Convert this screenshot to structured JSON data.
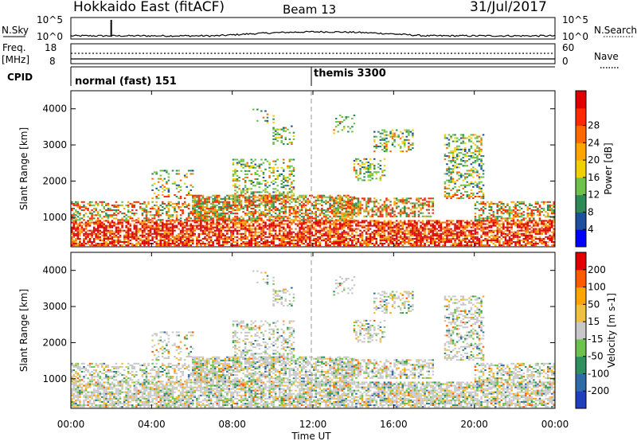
{
  "header": {
    "station": "Hokkaido East (fitACF)",
    "beam": "Beam 13",
    "date": "31/Jul/2017"
  },
  "small_panels": {
    "nsky_label": "N.Sky",
    "nsky_ticks": [
      "10^5",
      "10^0"
    ],
    "nsearch_label": "N.Search",
    "nsearch_ticks": [
      "10^5",
      "10^0"
    ],
    "freq_label": "Freq.",
    "freq_unit": "[MHz]",
    "freq_ticks": [
      "18",
      "8"
    ],
    "nave_label": "Nave",
    "nave_ticks": [
      "60",
      "0"
    ],
    "cpid_label": "CPID",
    "cpid_segments": [
      {
        "label": "normal (fast) 151",
        "start_hour": 0,
        "end_hour": 12
      },
      {
        "label": "themis 3300",
        "start_hour": 12,
        "end_hour": 24
      }
    ]
  },
  "chart_data": [
    {
      "type": "heatmap",
      "name": "power-panel",
      "ylabel": "Slant Range [km]",
      "yticks": [
        "1000",
        "2000",
        "3000",
        "4000"
      ],
      "ylim": [
        180,
        4500
      ],
      "xlim": [
        0,
        24
      ],
      "colorbar": {
        "label": "Power [dB]",
        "ticks": [
          "4",
          "8",
          "12",
          "16",
          "20",
          "24",
          "28"
        ],
        "colors": [
          "#0000ff",
          "#1e50a0",
          "#2e8b57",
          "#6cc24a",
          "#f0d000",
          "#ffa500",
          "#ff6a00",
          "#ff2a00",
          "#e00000"
        ]
      }
    },
    {
      "type": "heatmap",
      "name": "velocity-panel",
      "ylabel": "Slant Range [km]",
      "yticks": [
        "1000",
        "2000",
        "3000",
        "4000"
      ],
      "ylim": [
        180,
        4500
      ],
      "xlim": [
        0,
        24
      ],
      "colorbar": {
        "label": "Velocity [m s-1]",
        "ticks": [
          "200",
          "100",
          "50",
          "15",
          "-15",
          "-50",
          "-100",
          "-200"
        ],
        "colors": [
          "#1f3fbf",
          "#2e6ca8",
          "#2f8f5f",
          "#6cc24a",
          "#c8c8c8",
          "#f0c040",
          "#ffa500",
          "#ff5a00",
          "#e00000"
        ]
      }
    }
  ],
  "x_axis": {
    "ticks": [
      "00:00",
      "04:00",
      "08:00",
      "12:00",
      "16:00",
      "20:00",
      "00:00"
    ],
    "label": "Time UT"
  }
}
